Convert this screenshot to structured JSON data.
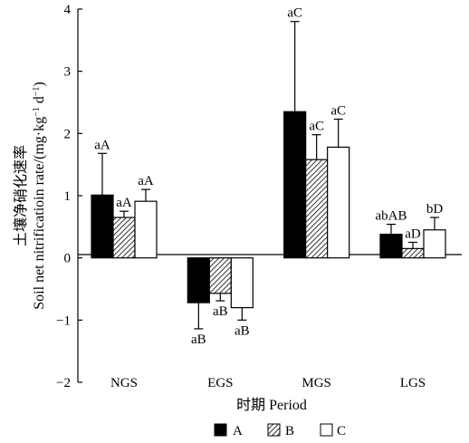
{
  "chart_data": {
    "type": "bar",
    "categories": [
      "NGS",
      "EGS",
      "MGS",
      "LGS"
    ],
    "series": [
      {
        "name": "A",
        "values": [
          1.01,
          -0.72,
          2.35,
          0.38
        ],
        "errors": [
          0.67,
          0.42,
          1.45,
          0.16
        ],
        "labels": [
          "aA",
          "aB",
          "aC",
          "abAB"
        ],
        "fill": "#000000"
      },
      {
        "name": "B",
        "values": [
          0.65,
          -0.57,
          1.58,
          0.15
        ],
        "errors": [
          0.1,
          0.12,
          0.4,
          0.1
        ],
        "labels": [
          "aA",
          "aB",
          "aC",
          "aD"
        ],
        "fill": "hatch"
      },
      {
        "name": "C",
        "values": [
          0.91,
          -0.8,
          1.78,
          0.45
        ],
        "errors": [
          0.19,
          0.2,
          0.45,
          0.2
        ],
        "labels": [
          "aA",
          "aB",
          "aC",
          "bD"
        ],
        "fill": "#ffffff"
      }
    ],
    "xlabel": "时期 Period",
    "ylabel_cn": "土壤净硝化速率",
    "ylabel_en": "Soil net nitrificatioin rate/(mg·kg",
    "ylabel_sup": "−1",
    "ylabel_unit": " d",
    "ylabel_end": ")",
    "yticks": [
      "4",
      "3",
      "2",
      "1",
      "0",
      "−1",
      "−2"
    ],
    "ylim": [
      -2,
      4
    ],
    "grid": false,
    "legend_position": "bottom-center"
  }
}
